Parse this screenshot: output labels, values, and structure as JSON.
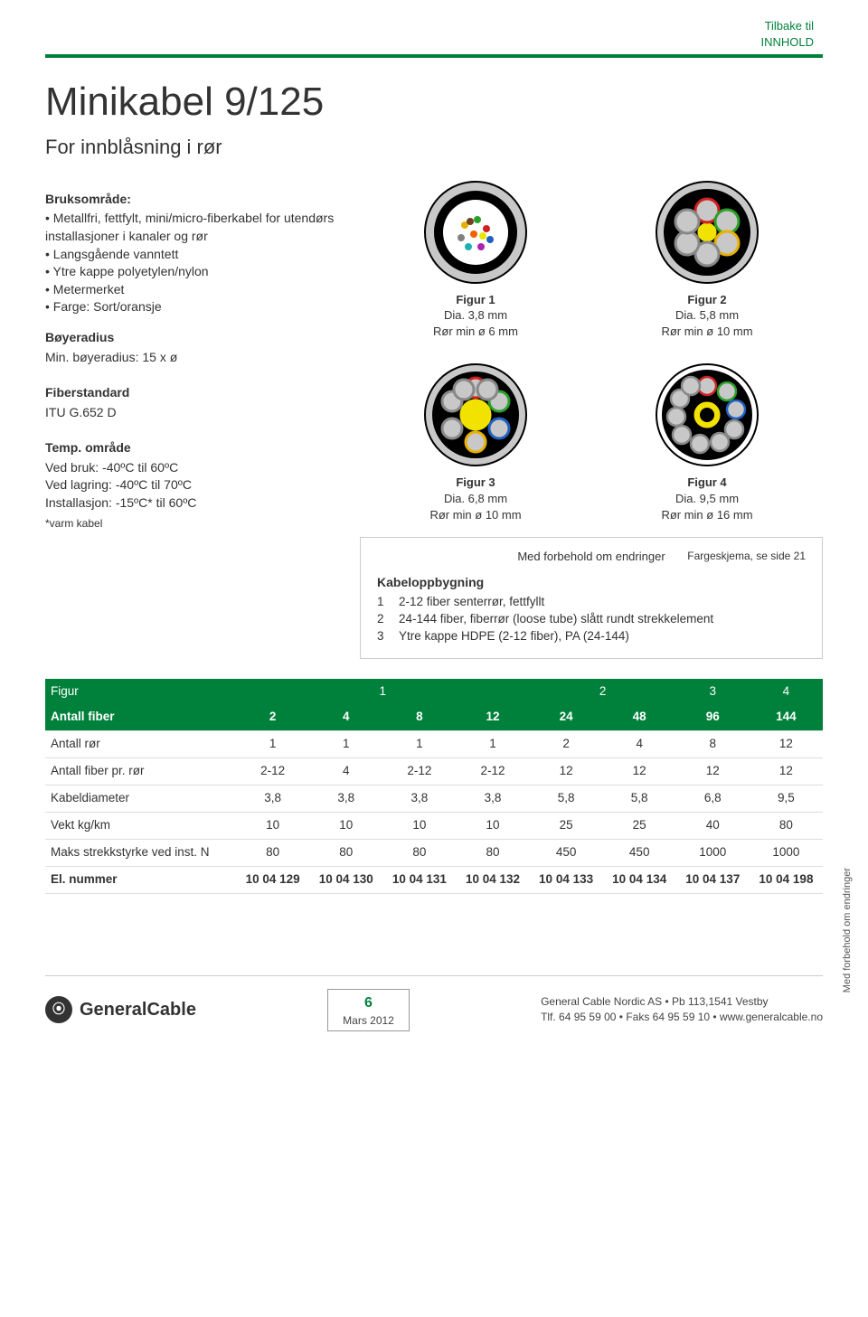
{
  "colors": {
    "brand_green": "#00813b",
    "text": "#333333",
    "rule": "#dddddd",
    "box_border": "#cccccc"
  },
  "topbar": {
    "line1": "Tilbake til",
    "line2": "INNHOLD"
  },
  "title": "Minikabel 9/125",
  "subtitle": "For innblåsning i rør",
  "left": {
    "bruksomrade_h": "Bruksområde:",
    "bruks_items": [
      "Metallfri, fettfylt, mini/micro-fiberkabel for utendørs installasjoner i kanaler og rør",
      "Langsgående vanntett",
      "Ytre kappe polyetylen/nylon",
      "Metermerket",
      "Farge: Sort/oransje"
    ],
    "boy_h": "Bøyeradius",
    "boy_text": "Min. bøyeradius: 15 x ø",
    "fib_h": "Fiberstandard",
    "fib_text": "ITU G.652 D",
    "temp_h": "Temp. område",
    "temp_lines": [
      "Ved bruk: -40ºC til 60ºC",
      "Ved lagring: -40ºC til 70ºC",
      "Installasjon: -15ºC* til 60ºC"
    ],
    "varm": "*varm kabel"
  },
  "figs": {
    "f1": {
      "name": "Figur 1",
      "dia": "Dia. 3,8 mm",
      "ror": "Rør min ø 6 mm"
    },
    "f2": {
      "name": "Figur 2",
      "dia": "Dia. 5,8 mm",
      "ror": "Rør min ø 10 mm"
    },
    "f3": {
      "name": "Figur 3",
      "dia": "Dia. 6,8 mm",
      "ror": "Rør min ø 10 mm"
    },
    "f4": {
      "name": "Figur 4",
      "dia": "Dia. 9,5 mm",
      "ror": "Rør min ø 16 mm"
    }
  },
  "disclaimer": {
    "center": "Med forbehold om endringer",
    "side": "Fargeskjema, se side 21",
    "kb_h": "Kabeloppbygning",
    "kb": [
      {
        "n": "1",
        "t": "2-12 fiber senterrør, fettfyllt"
      },
      {
        "n": "2",
        "t": "24-144 fiber, fiberrør (loose tube) slått rundt strekkelement"
      },
      {
        "n": "3",
        "t": "Ytre kappe HDPE (2-12 fiber), PA (24-144)"
      }
    ]
  },
  "table": {
    "header1": [
      "Figur",
      "1",
      "2",
      "3",
      "4"
    ],
    "header1_span": [
      1,
      4,
      2,
      1,
      1
    ],
    "header2": [
      "Antall fiber",
      "2",
      "4",
      "8",
      "12",
      "24",
      "48",
      "96",
      "144"
    ],
    "rows": [
      [
        "Antall rør",
        "1",
        "1",
        "1",
        "1",
        "2",
        "4",
        "8",
        "12"
      ],
      [
        "Antall fiber pr. rør",
        "2-12",
        "4",
        "2-12",
        "2-12",
        "12",
        "12",
        "12",
        "12"
      ],
      [
        "Kabeldiameter",
        "3,8",
        "3,8",
        "3,8",
        "3,8",
        "5,8",
        "5,8",
        "6,8",
        "9,5"
      ],
      [
        "Vekt kg/km",
        "10",
        "10",
        "10",
        "10",
        "25",
        "25",
        "40",
        "80"
      ],
      [
        "Maks strekkstyrke ved inst. N",
        "80",
        "80",
        "80",
        "80",
        "450",
        "450",
        "1000",
        "1000"
      ],
      [
        "El. nummer",
        "10 04 129",
        "10 04 130",
        "10 04 131",
        "10 04 132",
        "10 04 133",
        "10 04 134",
        "10 04 137",
        "10 04 198"
      ]
    ]
  },
  "side_caption": "Med forbehold om endringer",
  "footer": {
    "logo": "GeneralCable",
    "page_num": "6",
    "page_date": "Mars 2012",
    "addr1": "General Cable Nordic AS • Pb 113,1541 Vestby",
    "addr2": "Tlf. 64 95 59 00 • Faks 64 95 59 10 • www.generalcable.no"
  }
}
